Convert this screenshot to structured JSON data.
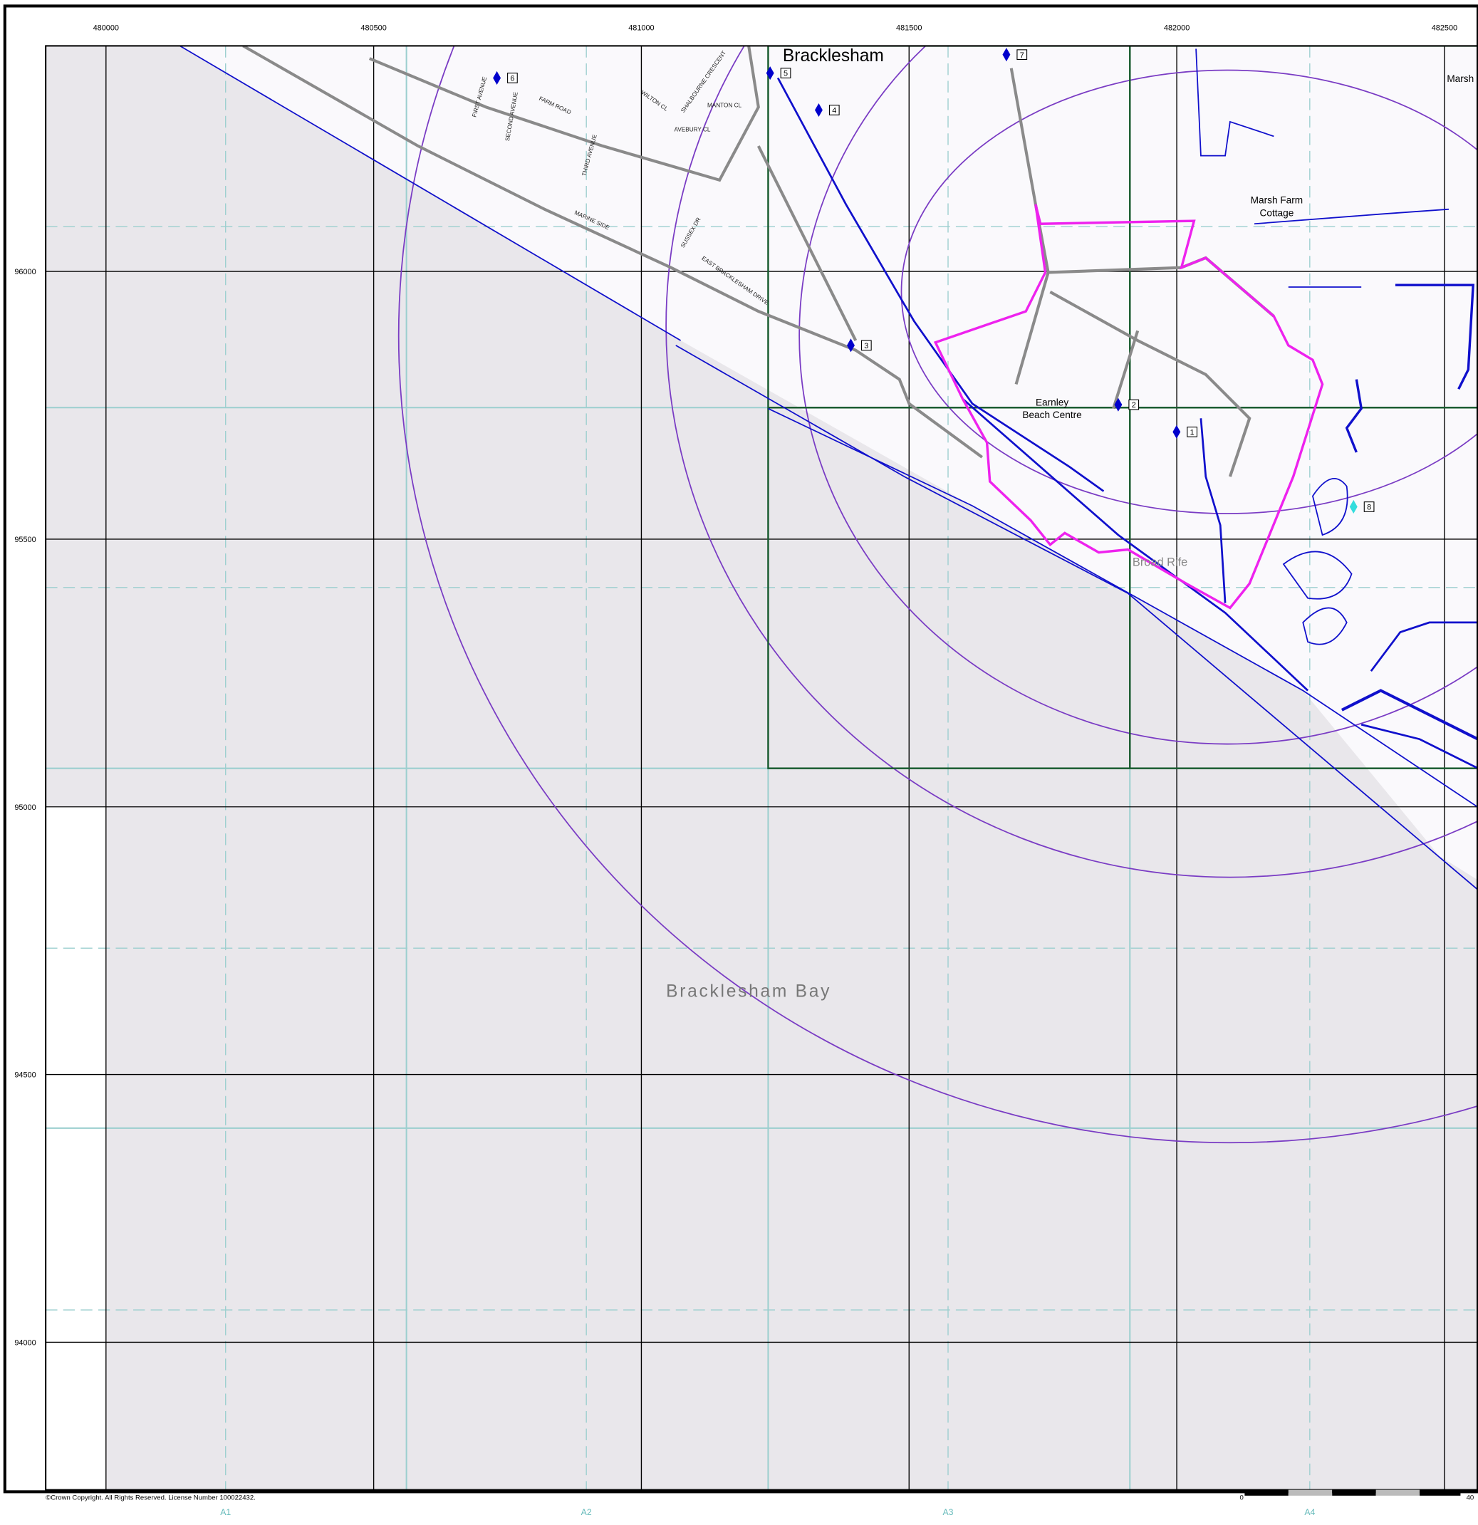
{
  "grid": {
    "eastings": [
      "480000",
      "480500",
      "481000",
      "481500",
      "482000",
      "482500"
    ],
    "northings": [
      "96000",
      "95500",
      "95000",
      "94500",
      "94000"
    ]
  },
  "sheets": [
    "A1",
    "A2",
    "A3",
    "A4"
  ],
  "places": {
    "town": "Bracklesham",
    "marsh": "Marsh",
    "farm": [
      "Marsh Farm",
      "Cottage"
    ],
    "centre": [
      "Earnley",
      "Beach Centre"
    ],
    "rife": "Broad Rife",
    "bay": "Bracklesham Bay"
  },
  "markers": [
    "1",
    "2",
    "3",
    "4",
    "5",
    "6",
    "7",
    "8"
  ],
  "streets": [
    "FARM ROAD",
    "FIRST AVENUE",
    "SECOND AVENUE",
    "THIRD AVENUE",
    "EAST BRACKLESHAM DRIVE",
    "SUSSEX DR",
    "MANTON CL",
    "AVEBURY CL",
    "WILTON CL",
    "SHALBOURNE CRESCENT",
    "MARINE SIDE"
  ],
  "copyright": "©Crown Copyright. All Rights Reserved. License Number 100022432.",
  "scale_bar": [
    "0",
    "40"
  ]
}
